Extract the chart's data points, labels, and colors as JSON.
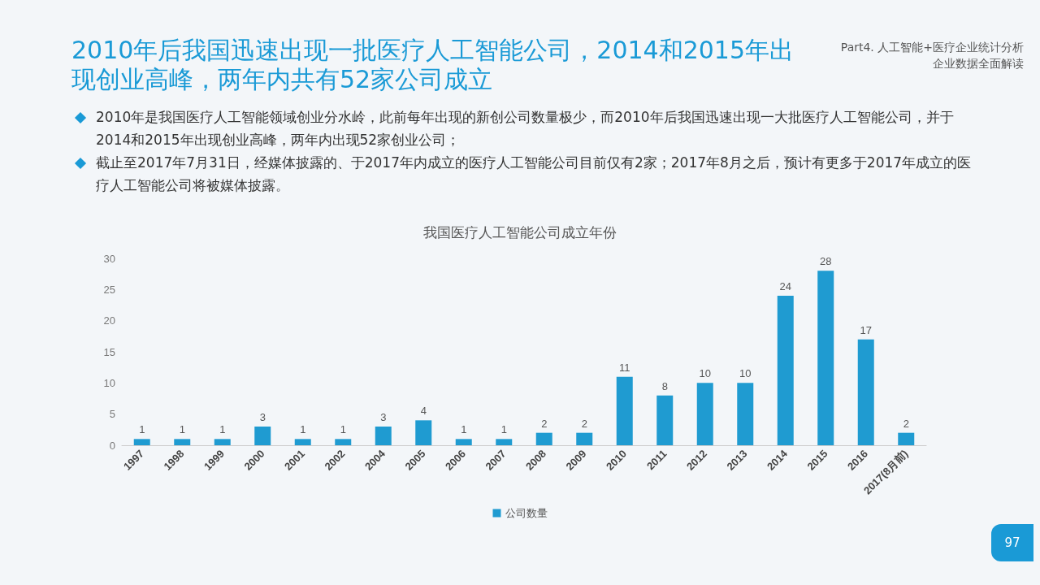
{
  "chart_data": {
    "type": "bar",
    "title": "2010年后我国迅速出现一批医疗人工智能公司，2014和2015年出现创业高峰，两年内共有52家公司成立",
    "subtitle": "我国医疗人工智能公司成立年份",
    "annotations": [
      "Part4. 人工智能+医疗企业统计分析",
      "企业数据全面解读",
      "2010年是我国医疗人工智能领域创业分水岭，此前每年出现的新创公司数量极少，而2010年后我国迅速出现一大批医疗人工智能公司，并于2014和2015年出现创业高峰，两年内出现52家创业公司；",
      "截止至2017年7月31日，经媒体披露的、于2017年内成立的医疗人工智能公司目前仅有2家；2017年8月之后，预计有更多于2017年成立的医疗人工智能公司将被媒体披露。",
      "97"
    ],
    "categories": [
      "1997",
      "1998",
      "1999",
      "2000",
      "2001",
      "2002",
      "2004",
      "2005",
      "2006",
      "2007",
      "2008",
      "2009",
      "2010",
      "2011",
      "2012",
      "2013",
      "2014",
      "2015",
      "2016",
      "2017(8月前)"
    ],
    "series": [
      {
        "name": "公司数量",
        "color": "#1f9bd1",
        "values": [
          1,
          1,
          1,
          3,
          1,
          1,
          3,
          4,
          1,
          1,
          2,
          2,
          11,
          8,
          10,
          10,
          24,
          28,
          17,
          2
        ]
      }
    ],
    "ylim": [
      0,
      30
    ],
    "yticks": [
      0,
      5,
      10,
      15,
      20,
      25,
      30
    ],
    "data_labels": true,
    "grid": false,
    "legend": "bottom"
  }
}
